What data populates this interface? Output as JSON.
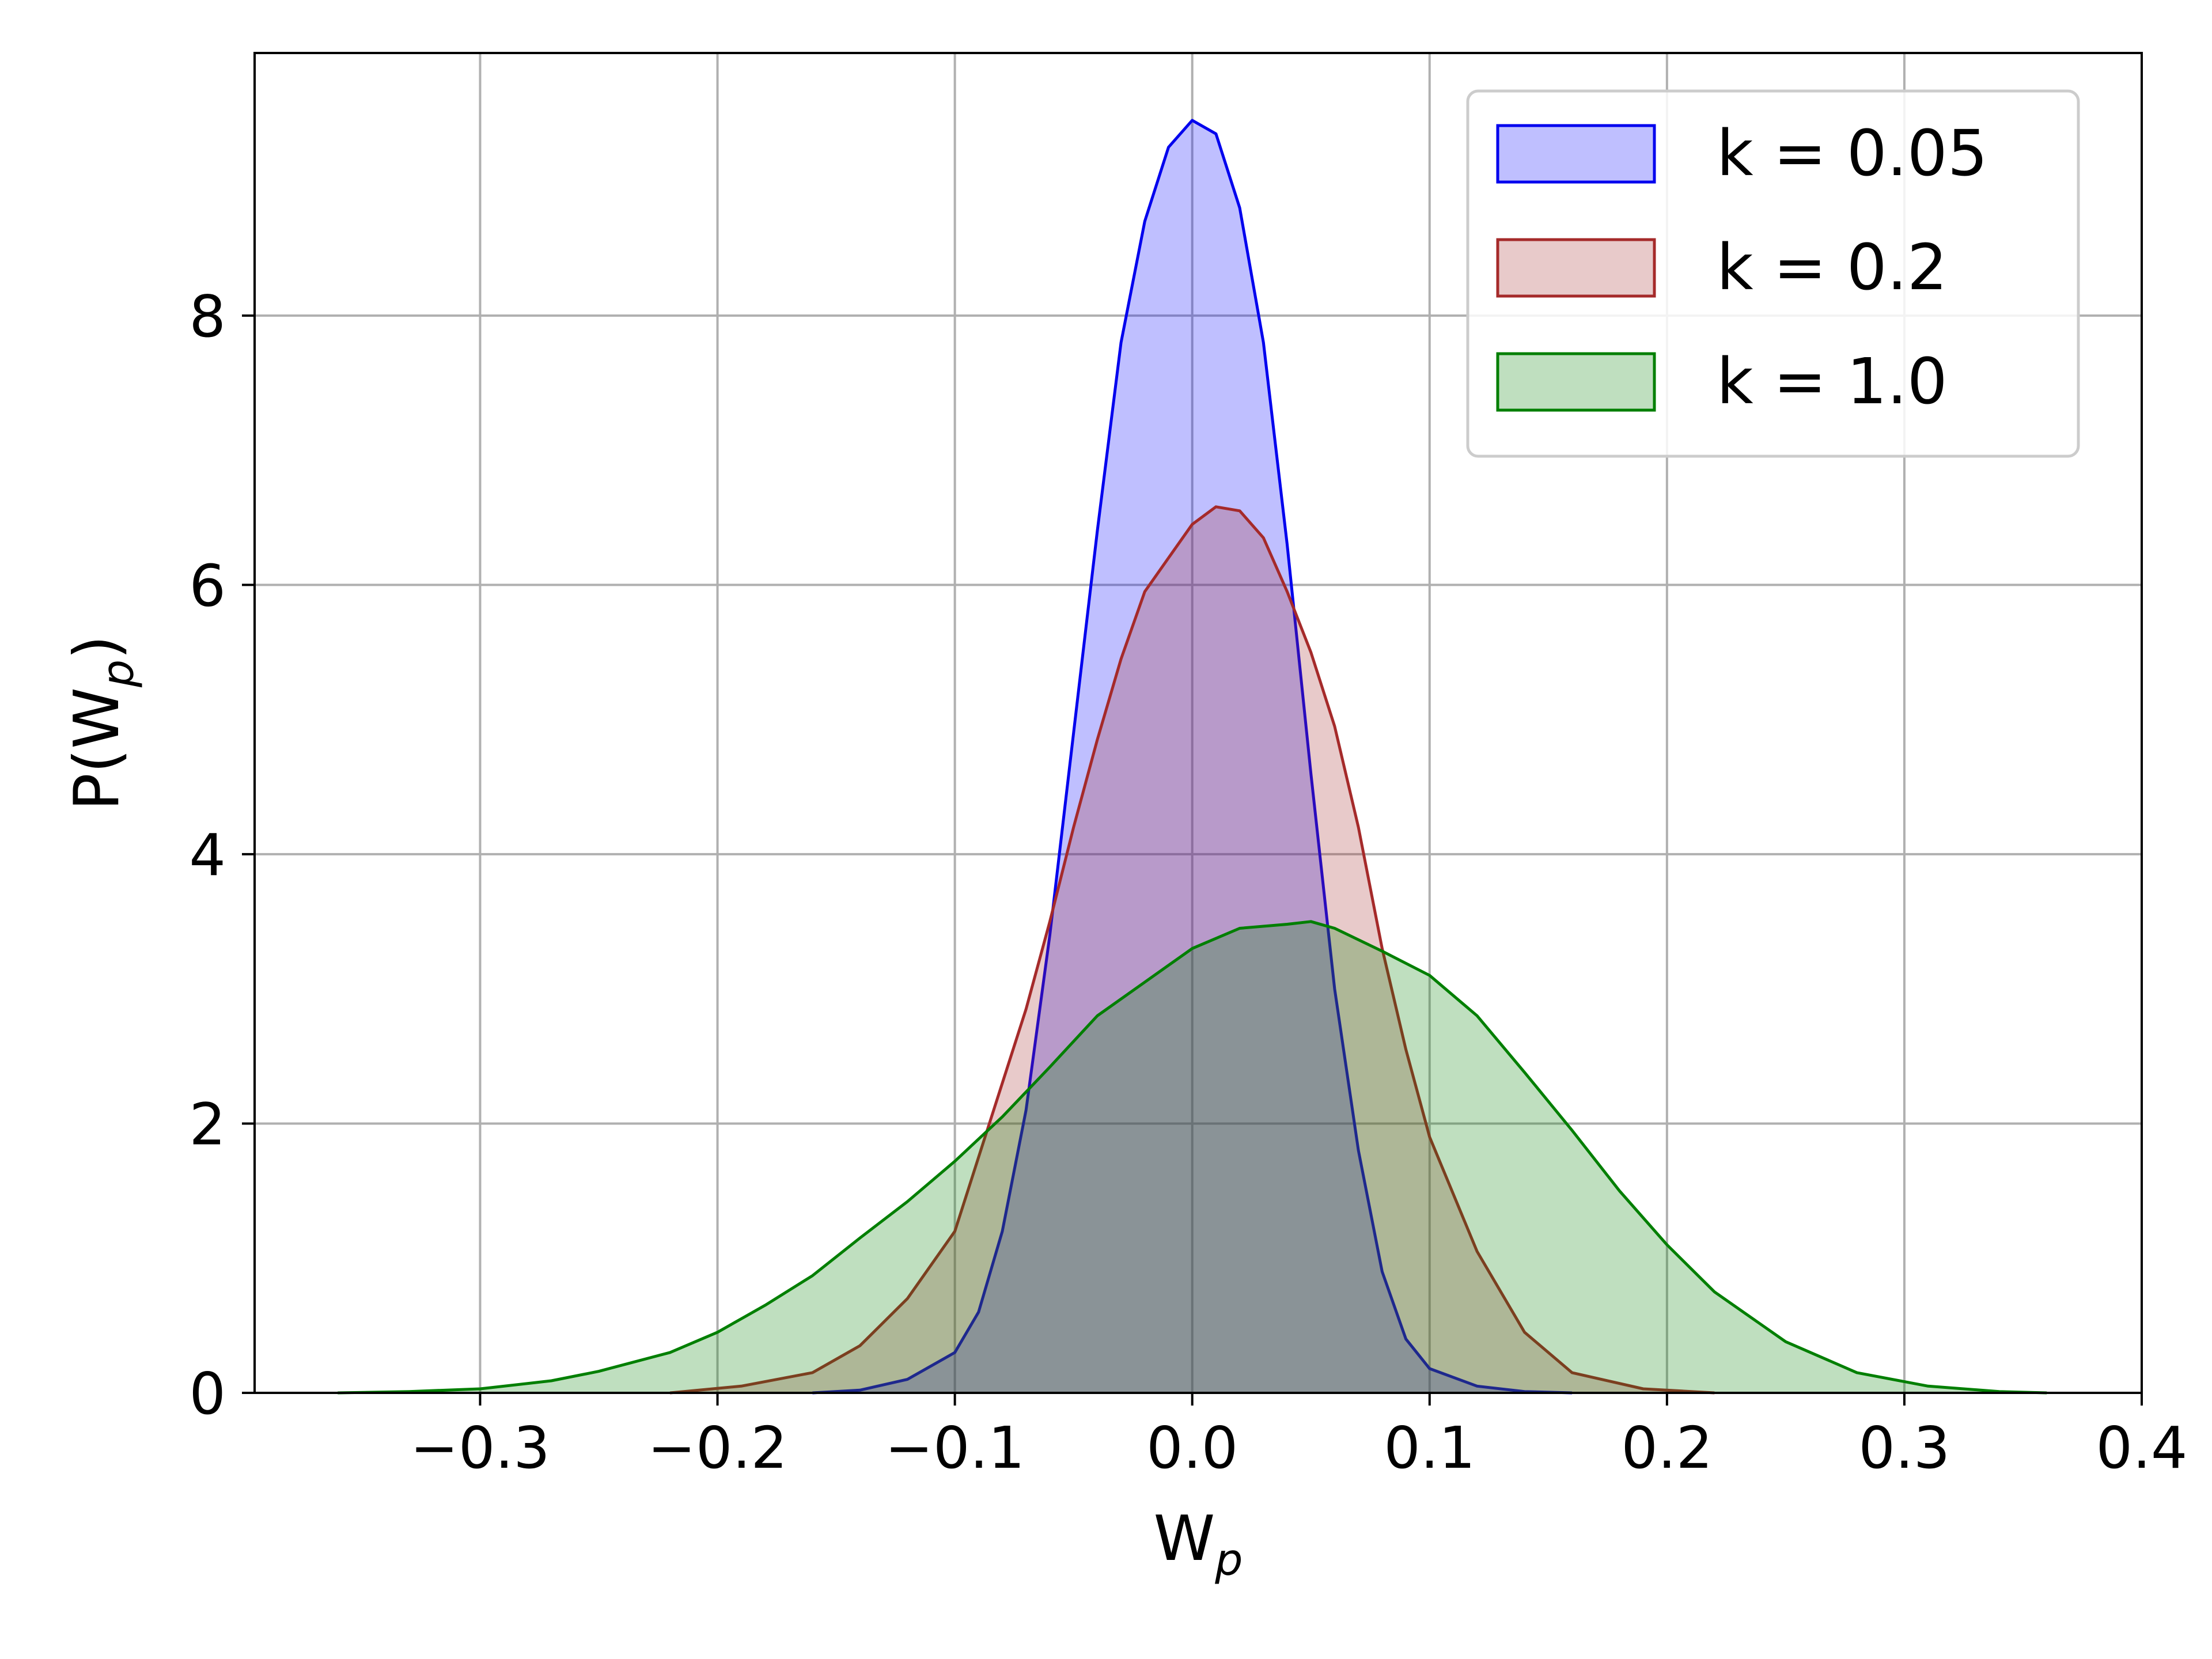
{
  "chart_data": {
    "type": "area",
    "title": "",
    "xlabel": "W",
    "xlabel_sub": "p",
    "ylabel": "P(W",
    "ylabel_sub": "p",
    "ylabel_close": ")",
    "xlim": [
      -0.395,
      0.4
    ],
    "ylim": [
      0,
      9.95
    ],
    "x_ticks": [
      -0.3,
      -0.2,
      -0.1,
      0.0,
      0.1,
      0.2,
      0.3,
      0.4
    ],
    "x_tick_labels": [
      "−0.3",
      "−0.2",
      "−0.1",
      "0.0",
      "0.1",
      "0.2",
      "0.3",
      "0.4"
    ],
    "y_ticks": [
      0,
      2,
      4,
      6,
      8
    ],
    "y_tick_labels": [
      "0",
      "2",
      "4",
      "6",
      "8"
    ],
    "grid": true,
    "legend_position": "top-right",
    "series": [
      {
        "name": "k = 0.05",
        "line_color": "#0000ee",
        "fill_color": "#0000ff",
        "fill_alpha": 0.25,
        "x": [
          -0.16,
          -0.14,
          -0.12,
          -0.1,
          -0.09,
          -0.08,
          -0.07,
          -0.06,
          -0.05,
          -0.04,
          -0.03,
          -0.02,
          -0.01,
          0.0,
          0.01,
          0.02,
          0.03,
          0.04,
          0.05,
          0.06,
          0.07,
          0.08,
          0.09,
          0.1,
          0.12,
          0.14,
          0.16
        ],
        "y": [
          0.0,
          0.02,
          0.1,
          0.3,
          0.6,
          1.2,
          2.1,
          3.4,
          4.9,
          6.4,
          7.8,
          8.7,
          9.25,
          9.45,
          9.35,
          8.8,
          7.8,
          6.3,
          4.6,
          3.0,
          1.8,
          0.9,
          0.4,
          0.18,
          0.05,
          0.01,
          0.0
        ]
      },
      {
        "name": "k = 0.2",
        "line_color": "#a52a2a",
        "fill_color": "#a52a2a",
        "fill_alpha": 0.25,
        "x": [
          -0.22,
          -0.19,
          -0.16,
          -0.14,
          -0.12,
          -0.1,
          -0.09,
          -0.08,
          -0.07,
          -0.06,
          -0.05,
          -0.04,
          -0.03,
          -0.02,
          -0.01,
          0.0,
          0.01,
          0.02,
          0.03,
          0.04,
          0.05,
          0.06,
          0.07,
          0.08,
          0.09,
          0.1,
          0.12,
          0.14,
          0.16,
          0.19,
          0.22
        ],
        "y": [
          0.0,
          0.05,
          0.15,
          0.35,
          0.7,
          1.2,
          1.75,
          2.3,
          2.85,
          3.5,
          4.2,
          4.85,
          5.45,
          5.95,
          6.2,
          6.45,
          6.58,
          6.55,
          6.35,
          5.95,
          5.5,
          4.95,
          4.2,
          3.3,
          2.55,
          1.9,
          1.05,
          0.45,
          0.15,
          0.03,
          0.0
        ]
      },
      {
        "name": "k = 1.0",
        "line_color": "#007f00",
        "fill_color": "#008000",
        "fill_alpha": 0.25,
        "x": [
          -0.36,
          -0.33,
          -0.3,
          -0.27,
          -0.25,
          -0.22,
          -0.2,
          -0.18,
          -0.16,
          -0.14,
          -0.12,
          -0.1,
          -0.08,
          -0.06,
          -0.04,
          -0.02,
          0.0,
          0.02,
          0.04,
          0.05,
          0.06,
          0.08,
          0.1,
          0.12,
          0.14,
          0.16,
          0.18,
          0.2,
          0.22,
          0.25,
          0.28,
          0.31,
          0.34,
          0.36
        ],
        "y": [
          0.0,
          0.01,
          0.03,
          0.09,
          0.16,
          0.3,
          0.45,
          0.65,
          0.87,
          1.15,
          1.42,
          1.72,
          2.05,
          2.42,
          2.8,
          3.05,
          3.3,
          3.45,
          3.48,
          3.5,
          3.45,
          3.28,
          3.1,
          2.8,
          2.38,
          1.95,
          1.5,
          1.1,
          0.75,
          0.38,
          0.15,
          0.05,
          0.01,
          0.0
        ]
      }
    ]
  }
}
